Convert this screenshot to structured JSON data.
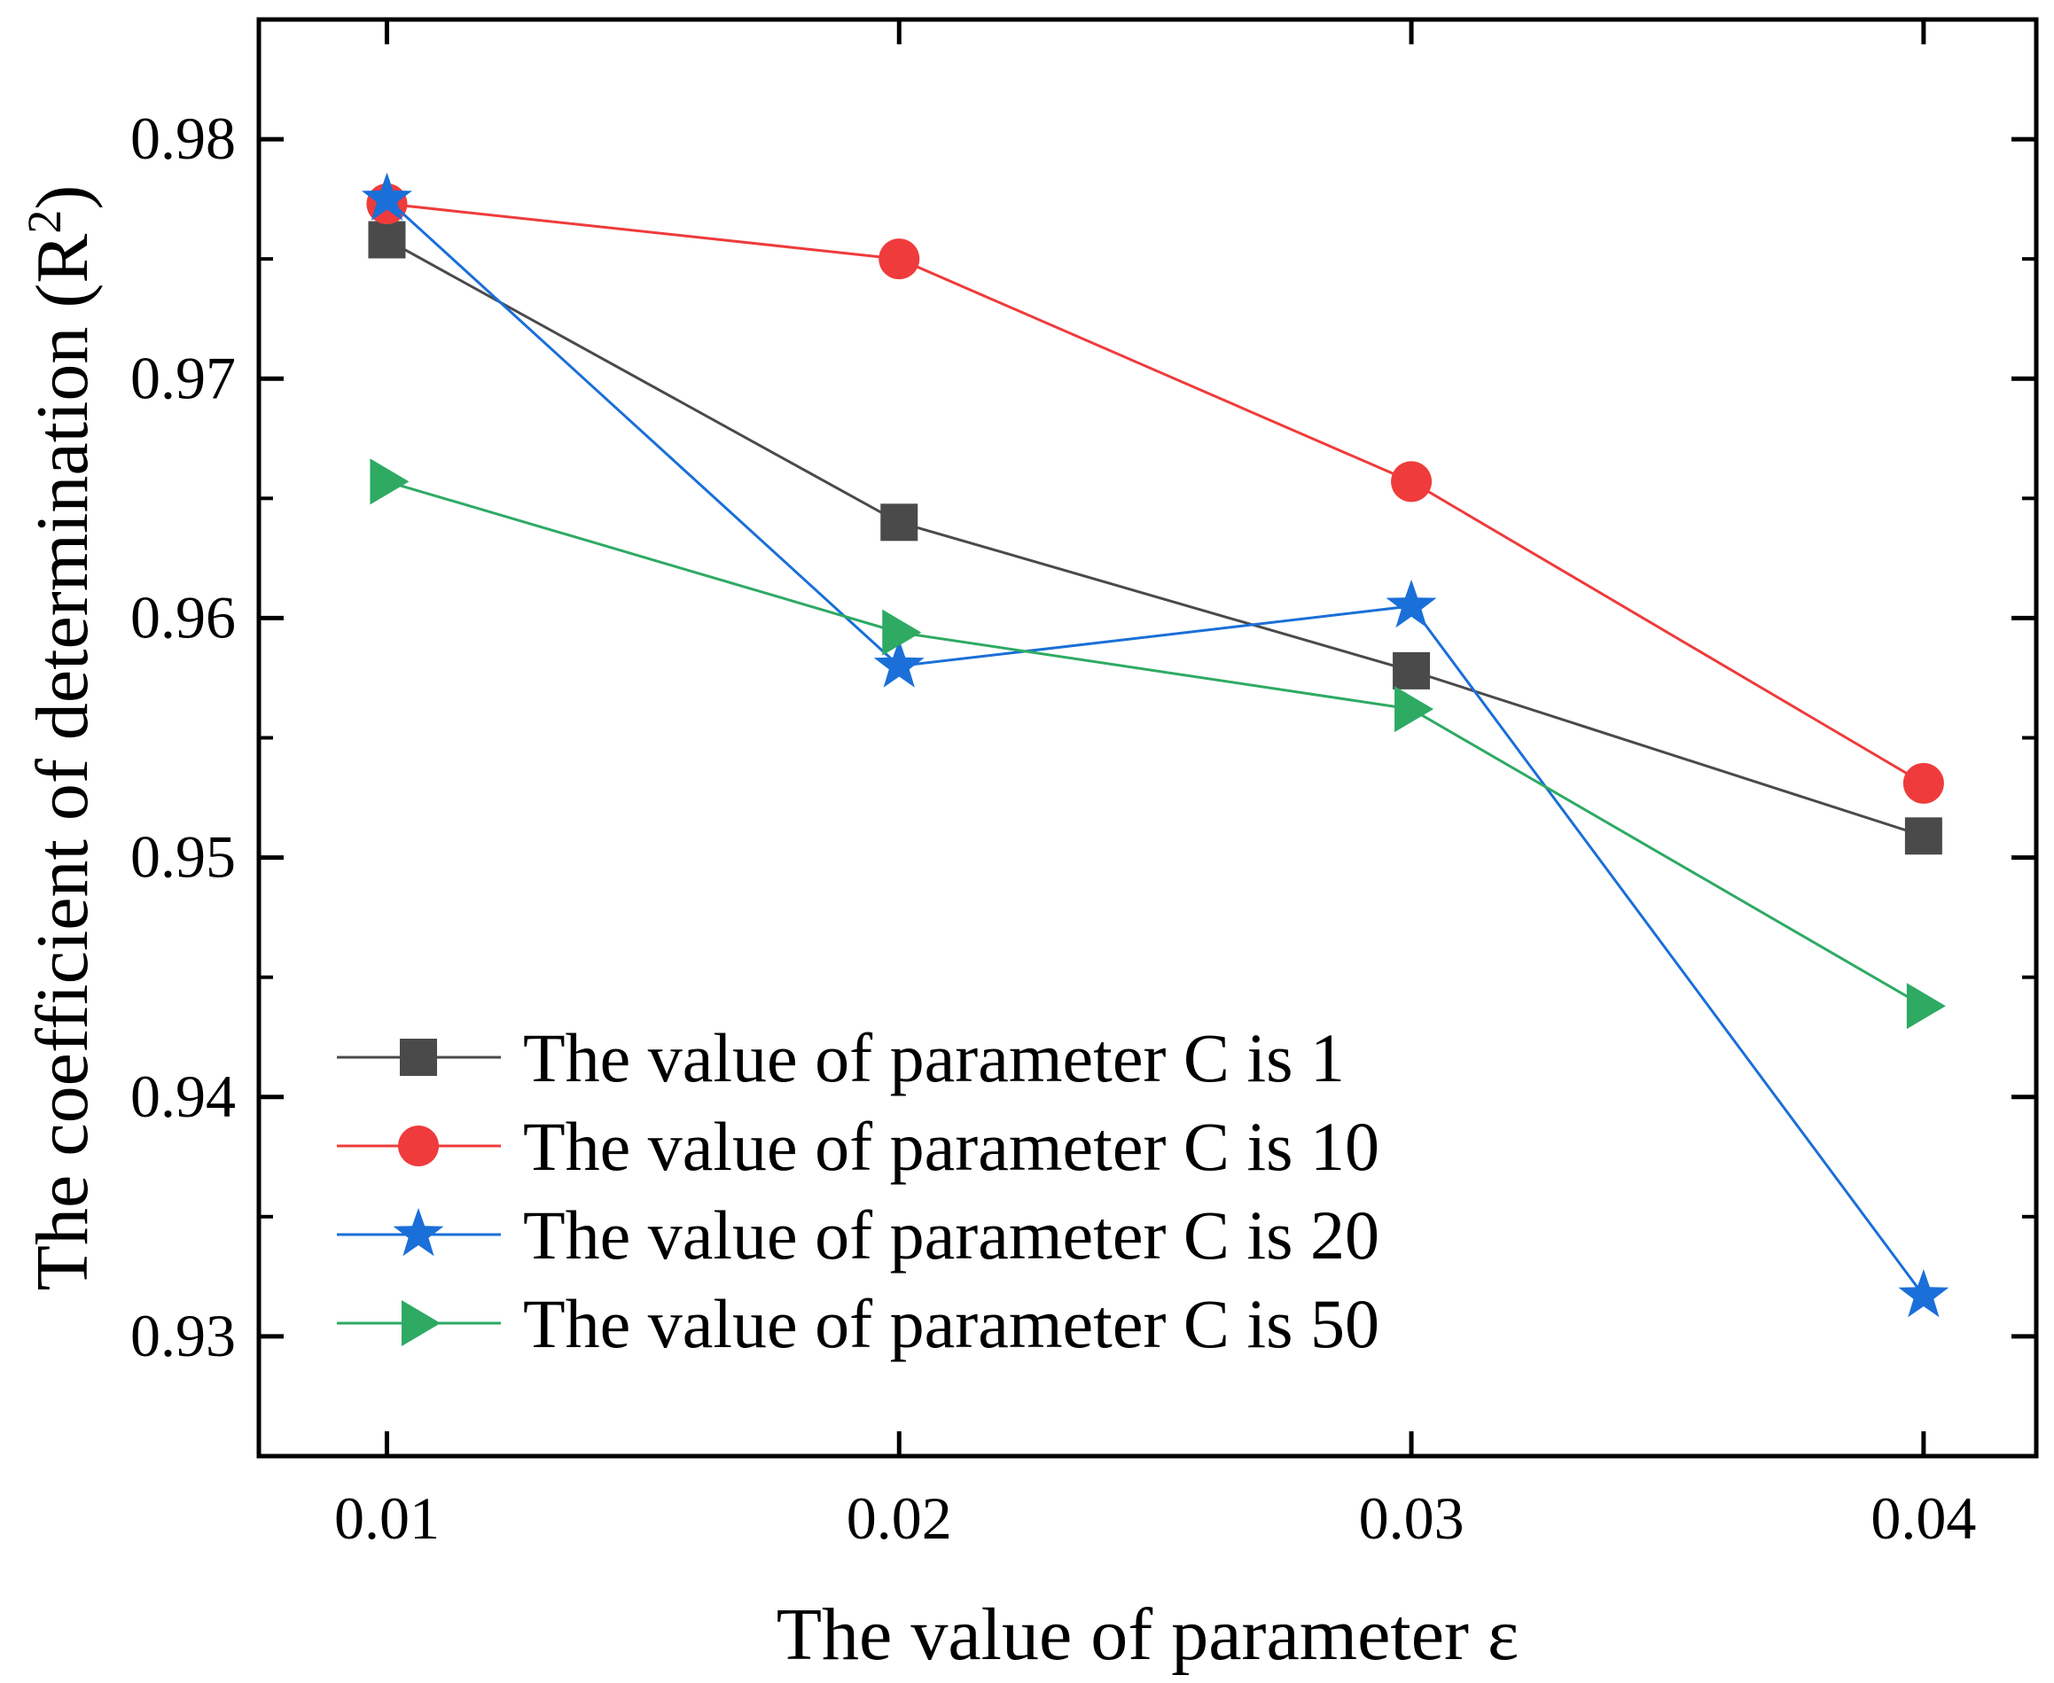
{
  "chart_data": {
    "type": "line",
    "title": "",
    "xlabel": "The value of parameter ε",
    "ylabel": "The coefficient of determination (R",
    "ylabel_superscript": "2",
    "ylabel_close": ")",
    "x": [
      0.01,
      0.02,
      0.03,
      0.04
    ],
    "x_tick_labels": [
      "0.01",
      "0.02",
      "0.03",
      "0.04"
    ],
    "xlim": [
      0.0075,
      0.0422
    ],
    "y_ticks": [
      0.93,
      0.94,
      0.95,
      0.96,
      0.97,
      0.98
    ],
    "y_tick_labels": [
      "0.93",
      "0.94",
      "0.95",
      "0.96",
      "0.97",
      "0.98"
    ],
    "ylim": [
      0.925,
      0.985
    ],
    "grid": false,
    "legend_position": "bottom-left",
    "series": [
      {
        "name": "The value of parameter C is 1",
        "values": [
          0.9758,
          0.964,
          0.9578,
          0.9509
        ],
        "color": "#4a4a4a",
        "marker": "square"
      },
      {
        "name": "The value of parameter C is 10",
        "values": [
          0.9773,
          0.975,
          0.9657,
          0.9531
        ],
        "color": "#ef3b3b",
        "marker": "circle"
      },
      {
        "name": "The value of parameter C is 20",
        "values": [
          0.9775,
          0.958,
          0.9605,
          0.9317
        ],
        "color": "#1a6fd8",
        "marker": "star"
      },
      {
        "name": "The value of parameter C is 50",
        "values": [
          0.9657,
          0.9594,
          0.9562,
          0.9438
        ],
        "color": "#2eaa63",
        "marker": "triangle-right"
      }
    ]
  }
}
